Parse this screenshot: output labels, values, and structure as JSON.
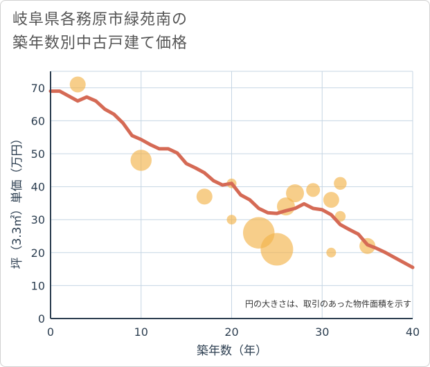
{
  "title_line1": "岐阜県各務原市緑苑南の",
  "title_line2": "築年数別中古戸建て価格",
  "chart_data": {
    "type": "scatter+line",
    "xlabel": "築年数（年）",
    "ylabel": "坪（3.3㎡）単価（万円）",
    "xlim": [
      0,
      40
    ],
    "ylim": [
      0,
      75
    ],
    "xticks": [
      0,
      10,
      20,
      30,
      40
    ],
    "yticks": [
      0,
      10,
      20,
      30,
      40,
      50,
      60,
      70
    ],
    "note": "円の大きさは、取引のあった物件面積を示す",
    "colors": {
      "line": "#d56a55",
      "bubble": "#f2b44b",
      "grid": "#c5d5e3",
      "axis": "#2c3e50"
    },
    "trend": {
      "x": [
        0,
        1,
        2,
        3,
        4,
        5,
        6,
        7,
        8,
        9,
        10,
        11,
        12,
        13,
        14,
        15,
        16,
        17,
        18,
        19,
        20,
        21,
        22,
        23,
        24,
        25,
        26,
        27,
        28,
        29,
        30,
        31,
        32,
        33,
        34,
        35,
        36,
        37,
        38,
        39,
        40
      ],
      "y": [
        69,
        69,
        67.5,
        66,
        67.2,
        66,
        63.5,
        62,
        59.3,
        55.5,
        54.3,
        52.8,
        51.5,
        51.5,
        50.2,
        47,
        45.7,
        44.2,
        41.8,
        40.5,
        41,
        37.5,
        36,
        33.4,
        32.1,
        31.9,
        32.7,
        33.4,
        34.8,
        33.4,
        33,
        31.5,
        28.5,
        27,
        25.6,
        22.4,
        21.3,
        20,
        18.5,
        17,
        15.5
      ]
    },
    "bubbles": [
      {
        "x": 3,
        "y": 71,
        "size": 1.0
      },
      {
        "x": 10,
        "y": 48,
        "size": 1.5
      },
      {
        "x": 17,
        "y": 37,
        "size": 1.0
      },
      {
        "x": 20,
        "y": 30,
        "size": 0.4
      },
      {
        "x": 20,
        "y": 41,
        "size": 0.4
      },
      {
        "x": 23,
        "y": 26,
        "size": 2.5
      },
      {
        "x": 25,
        "y": 21,
        "size": 2.6
      },
      {
        "x": 26,
        "y": 34,
        "size": 1.2
      },
      {
        "x": 27,
        "y": 38,
        "size": 1.2
      },
      {
        "x": 29,
        "y": 39,
        "size": 0.8
      },
      {
        "x": 31,
        "y": 36,
        "size": 1.0
      },
      {
        "x": 31,
        "y": 20,
        "size": 0.4
      },
      {
        "x": 32,
        "y": 41,
        "size": 0.7
      },
      {
        "x": 32,
        "y": 31,
        "size": 0.5
      },
      {
        "x": 35,
        "y": 22,
        "size": 1.0
      }
    ]
  }
}
